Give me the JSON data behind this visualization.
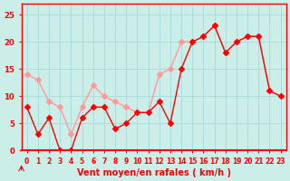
{
  "hours": [
    0,
    1,
    2,
    3,
    4,
    5,
    6,
    7,
    8,
    9,
    10,
    11,
    12,
    13,
    14,
    15,
    16,
    17,
    18,
    19,
    20,
    21,
    22,
    23
  ],
  "wind_avg": [
    8,
    3,
    6,
    0,
    0,
    6,
    8,
    8,
    4,
    5,
    7,
    7,
    9,
    5,
    15,
    20,
    21,
    23,
    18,
    20,
    21,
    21,
    11,
    10
  ],
  "wind_gust": [
    14,
    13,
    9,
    8,
    3,
    8,
    12,
    10,
    9,
    8,
    7,
    7,
    14,
    15,
    20,
    20,
    21,
    23,
    18,
    20,
    21,
    21,
    11,
    10
  ],
  "color_avg": "#ff0000",
  "color_gust": "#ff9999",
  "background_color": "#cceee8",
  "grid_color": "#aadddd",
  "axis_color": "#ff0000",
  "xlabel": "Vent moyen/en rafales ( km/h )",
  "ylabel": "",
  "ylim": [
    0,
    27
  ],
  "yticks": [
    0,
    5,
    10,
    15,
    20,
    25
  ],
  "marker": "D",
  "marker_size": 3
}
